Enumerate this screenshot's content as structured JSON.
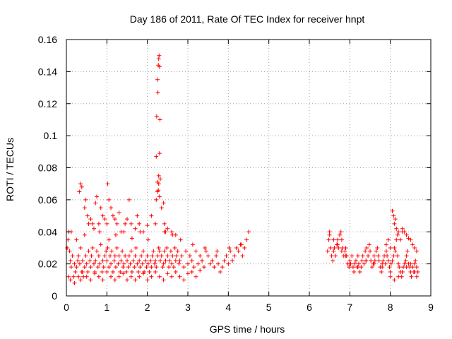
{
  "chart_data": {
    "type": "scatter",
    "title": "Day 186 of 2011, Rate Of TEC Index for receiver hnpt",
    "xlabel": "GPS time / hours",
    "ylabel": "ROTI / TECUs",
    "xlim": [
      0,
      9
    ],
    "ylim": [
      0,
      0.16
    ],
    "grid": true,
    "x_ticks": [
      0,
      1,
      2,
      3,
      4,
      5,
      6,
      7,
      8,
      9
    ],
    "x_tick_labels": [
      "0",
      "1",
      "2",
      "3",
      "4",
      "5",
      "6",
      "7",
      "8",
      "9"
    ],
    "y_ticks": [
      0,
      0.02,
      0.04,
      0.06,
      0.08,
      0.1,
      0.12,
      0.14,
      0.16
    ],
    "y_tick_labels": [
      "0",
      "0.02",
      "0.04",
      "0.06",
      "0.08",
      "0.1",
      "0.12",
      "0.14",
      "0.16"
    ],
    "marker": "+",
    "color": "#ff0000",
    "series": [
      {
        "name": "ROTI",
        "x": [
          0.02,
          0.04,
          0.06,
          0.08,
          0.1,
          0.12,
          0.15,
          0.18,
          0.2,
          0.22,
          0.25,
          0.28,
          0.3,
          0.33,
          0.35,
          0.38,
          0.4,
          0.42,
          0.45,
          0.48,
          0.5,
          0.53,
          0.55,
          0.58,
          0.6,
          0.62,
          0.65,
          0.68,
          0.7,
          0.72,
          0.75,
          0.78,
          0.8,
          0.82,
          0.85,
          0.88,
          0.9,
          0.92,
          0.95,
          0.98,
          1.0,
          1.02,
          1.05,
          1.08,
          1.1,
          1.12,
          1.15,
          1.18,
          1.2,
          1.22,
          1.25,
          1.28,
          1.3,
          1.33,
          1.35,
          1.38,
          1.4,
          1.42,
          1.45,
          1.48,
          1.5,
          1.53,
          1.55,
          1.58,
          1.6,
          1.62,
          1.65,
          1.68,
          1.7,
          1.72,
          1.75,
          1.78,
          1.8,
          1.82,
          1.85,
          1.88,
          1.9,
          1.92,
          1.95,
          1.98,
          2.0,
          2.02,
          2.05,
          2.08,
          2.1,
          2.12,
          2.15,
          2.18,
          2.2,
          2.22,
          2.25,
          2.28,
          2.3,
          2.32,
          2.35,
          2.38,
          2.4,
          2.42,
          2.45,
          2.48,
          2.5,
          2.53,
          2.55,
          2.58,
          2.6,
          2.62,
          2.65,
          2.68,
          2.7,
          2.72,
          2.75,
          2.78,
          2.8,
          2.85,
          2.9,
          2.95,
          3.0,
          3.05,
          3.1,
          3.15,
          3.2,
          3.25,
          3.3,
          3.35,
          3.4,
          3.45,
          3.5,
          3.55,
          3.6,
          3.65,
          3.7,
          3.75,
          3.8,
          3.85,
          3.9,
          3.95,
          4.0,
          4.05,
          4.1,
          4.15,
          4.2,
          4.25,
          4.3,
          4.35,
          4.4,
          4.45,
          4.5,
          0.05,
          0.1,
          0.2,
          0.3,
          0.35,
          0.4,
          0.5,
          0.6,
          0.7,
          0.8,
          0.9,
          1.0,
          1.1,
          1.2,
          1.3,
          1.4,
          1.5,
          1.6,
          1.7,
          1.8,
          1.9,
          2.0,
          2.1,
          2.2,
          2.3,
          2.4,
          2.5,
          2.6,
          2.7,
          2.8,
          2.9,
          3.0,
          3.1,
          3.2,
          3.3,
          0.32,
          0.35,
          0.38,
          0.45,
          0.48,
          0.52,
          0.55,
          0.6,
          0.68,
          0.72,
          0.75,
          0.8,
          0.85,
          0.9,
          0.95,
          1.0,
          1.02,
          1.05,
          1.1,
          1.15,
          1.2,
          1.25,
          1.3,
          1.35,
          1.45,
          1.5,
          1.55,
          1.6,
          1.7,
          1.75,
          1.8,
          1.9,
          2.0,
          2.1,
          2.2,
          2.22,
          2.25,
          2.28,
          2.3,
          2.35,
          2.4,
          2.42,
          2.45,
          2.5,
          2.6,
          2.7,
          2.22,
          2.23,
          2.25,
          2.26,
          2.27,
          2.28,
          2.29,
          2.3,
          2.31,
          2.3,
          2.28,
          2.25,
          2.27,
          2.32,
          0.12,
          0.25,
          0.45,
          0.65,
          0.82,
          1.05,
          1.22,
          1.42,
          1.62,
          1.82,
          2.02,
          2.42,
          2.62,
          2.82,
          3.12,
          3.42,
          3.72,
          4.02,
          4.32,
          6.45,
          6.48,
          6.5,
          6.52,
          6.55,
          6.58,
          6.6,
          6.62,
          6.65,
          6.68,
          6.7,
          6.72,
          6.75,
          6.78,
          6.8,
          6.82,
          6.85,
          6.88,
          6.9,
          6.92,
          6.95,
          6.98,
          7.0,
          7.02,
          7.05,
          7.08,
          7.1,
          7.12,
          7.15,
          7.18,
          7.2,
          7.22,
          7.25,
          7.28,
          7.3,
          7.32,
          7.35,
          7.38,
          7.4,
          7.42,
          7.45,
          7.48,
          7.5,
          7.52,
          7.55,
          7.58,
          7.6,
          7.62,
          7.65,
          7.68,
          7.7,
          7.72,
          7.75,
          7.78,
          7.8,
          7.82,
          7.85,
          7.88,
          7.9,
          7.92,
          7.95,
          7.98,
          8.0,
          8.02,
          8.05,
          8.08,
          8.1,
          8.12,
          8.15,
          8.18,
          8.2,
          8.22,
          8.25,
          8.28,
          8.3,
          8.32,
          8.35,
          8.38,
          8.4,
          8.42,
          8.45,
          8.48,
          8.5,
          8.52,
          8.55,
          8.58,
          8.6,
          8.62,
          8.65,
          8.68,
          6.5,
          6.6,
          6.7,
          6.8,
          6.9,
          7.0,
          7.2,
          7.4,
          7.6,
          7.8,
          8.0,
          8.1,
          8.2,
          8.3,
          8.4,
          8.5,
          8.6,
          8.65,
          8.05,
          8.08,
          8.1,
          8.12,
          8.15,
          8.18,
          8.2,
          8.25,
          8.3,
          8.35,
          8.4,
          8.45,
          8.5,
          8.55,
          8.6,
          8.65,
          7.9,
          7.95,
          8.0,
          8.3
        ],
        "y": [
          0.03,
          0.035,
          0.04,
          0.028,
          0.022,
          0.018,
          0.025,
          0.012,
          0.02,
          0.015,
          0.018,
          0.022,
          0.025,
          0.02,
          0.03,
          0.015,
          0.022,
          0.012,
          0.018,
          0.025,
          0.02,
          0.015,
          0.028,
          0.022,
          0.018,
          0.025,
          0.03,
          0.02,
          0.015,
          0.022,
          0.028,
          0.018,
          0.025,
          0.02,
          0.032,
          0.015,
          0.022,
          0.018,
          0.025,
          0.028,
          0.022,
          0.03,
          0.018,
          0.025,
          0.02,
          0.028,
          0.015,
          0.022,
          0.025,
          0.018,
          0.03,
          0.02,
          0.025,
          0.015,
          0.022,
          0.028,
          0.018,
          0.02,
          0.025,
          0.015,
          0.022,
          0.018,
          0.025,
          0.02,
          0.028,
          0.015,
          0.022,
          0.018,
          0.025,
          0.03,
          0.02,
          0.015,
          0.022,
          0.018,
          0.025,
          0.02,
          0.028,
          0.015,
          0.022,
          0.018,
          0.025,
          0.02,
          0.015,
          0.022,
          0.018,
          0.025,
          0.028,
          0.02,
          0.022,
          0.018,
          0.025,
          0.03,
          0.028,
          0.022,
          0.025,
          0.018,
          0.02,
          0.028,
          0.022,
          0.03,
          0.025,
          0.018,
          0.022,
          0.028,
          0.02,
          0.025,
          0.018,
          0.03,
          0.022,
          0.025,
          0.028,
          0.02,
          0.022,
          0.025,
          0.018,
          0.028,
          0.02,
          0.025,
          0.022,
          0.018,
          0.028,
          0.02,
          0.025,
          0.022,
          0.018,
          0.028,
          0.025,
          0.02,
          0.022,
          0.018,
          0.025,
          0.02,
          0.015,
          0.018,
          0.022,
          0.025,
          0.02,
          0.028,
          0.022,
          0.025,
          0.03,
          0.028,
          0.032,
          0.025,
          0.03,
          0.035,
          0.04,
          0.012,
          0.01,
          0.008,
          0.012,
          0.01,
          0.015,
          0.012,
          0.01,
          0.014,
          0.012,
          0.01,
          0.015,
          0.012,
          0.01,
          0.012,
          0.014,
          0.01,
          0.012,
          0.01,
          0.012,
          0.014,
          0.01,
          0.012,
          0.015,
          0.012,
          0.01,
          0.014,
          0.012,
          0.015,
          0.012,
          0.01,
          0.014,
          0.015,
          0.012,
          0.016,
          0.065,
          0.07,
          0.068,
          0.055,
          0.06,
          0.05,
          0.045,
          0.048,
          0.042,
          0.058,
          0.062,
          0.045,
          0.055,
          0.05,
          0.048,
          0.045,
          0.07,
          0.06,
          0.055,
          0.05,
          0.048,
          0.045,
          0.052,
          0.04,
          0.045,
          0.048,
          0.06,
          0.045,
          0.042,
          0.05,
          0.045,
          0.04,
          0.044,
          0.05,
          0.045,
          0.06,
          0.065,
          0.07,
          0.062,
          0.055,
          0.058,
          0.045,
          0.04,
          0.042,
          0.04,
          0.038,
          0.087,
          0.112,
          0.135,
          0.127,
          0.144,
          0.148,
          0.15,
          0.143,
          0.11,
          0.089,
          0.075,
          0.071,
          0.066,
          0.073,
          0.04,
          0.035,
          0.038,
          0.045,
          0.04,
          0.035,
          0.038,
          0.04,
          0.036,
          0.04,
          0.035,
          0.04,
          0.038,
          0.035,
          0.032,
          0.03,
          0.028,
          0.03,
          0.032,
          0.028,
          0.035,
          0.04,
          0.03,
          0.025,
          0.022,
          0.028,
          0.03,
          0.025,
          0.032,
          0.035,
          0.03,
          0.038,
          0.04,
          0.035,
          0.03,
          0.025,
          0.028,
          0.03,
          0.025,
          0.02,
          0.018,
          0.022,
          0.02,
          0.025,
          0.018,
          0.015,
          0.02,
          0.022,
          0.018,
          0.025,
          0.02,
          0.015,
          0.018,
          0.022,
          0.025,
          0.02,
          0.028,
          0.022,
          0.03,
          0.025,
          0.032,
          0.028,
          0.022,
          0.018,
          0.02,
          0.025,
          0.022,
          0.028,
          0.03,
          0.025,
          0.022,
          0.018,
          0.015,
          0.02,
          0.022,
          0.025,
          0.02,
          0.028,
          0.025,
          0.022,
          0.018,
          0.015,
          0.02,
          0.022,
          0.025,
          0.03,
          0.028,
          0.035,
          0.025,
          0.02,
          0.018,
          0.015,
          0.012,
          0.015,
          0.018,
          0.02,
          0.022,
          0.025,
          0.028,
          0.02,
          0.018,
          0.015,
          0.012,
          0.018,
          0.015,
          0.02,
          0.022,
          0.018,
          0.015,
          0.038,
          0.035,
          0.032,
          0.028,
          0.025,
          0.02,
          0.018,
          0.022,
          0.02,
          0.018,
          0.012,
          0.01,
          0.012,
          0.015,
          0.018,
          0.02,
          0.015,
          0.012,
          0.053,
          0.05,
          0.045,
          0.048,
          0.042,
          0.038,
          0.04,
          0.035,
          0.042,
          0.04,
          0.038,
          0.036,
          0.035,
          0.032,
          0.03,
          0.028,
          0.032,
          0.035,
          0.03,
          0.04
        ]
      }
    ]
  }
}
